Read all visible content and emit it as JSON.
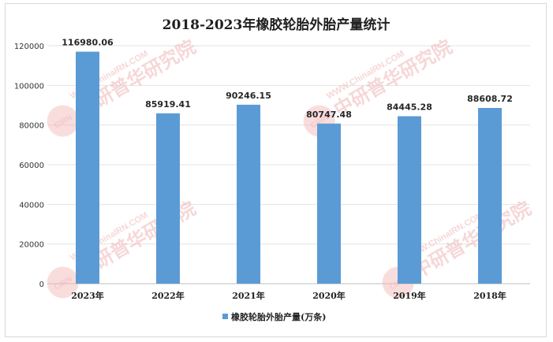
{
  "chart_data": {
    "type": "bar",
    "title": "2018-2023年橡胶轮胎外胎产量统计",
    "categories": [
      "2023年",
      "2022年",
      "2021年",
      "2020年",
      "2019年",
      "2018年"
    ],
    "series": [
      {
        "name": "橡胶轮胎外胎产量(万条)",
        "values": [
          116980.06,
          85919.41,
          90246.15,
          80747.48,
          84445.28,
          88608.72
        ],
        "labels": [
          "116980.06",
          "85919.41",
          "90246.15",
          "80747.48",
          "84445.28",
          "88608.72"
        ],
        "color": "#5b9bd5"
      }
    ],
    "yticks": [
      "0",
      "20000",
      "40000",
      "60000",
      "80000",
      "100000",
      "120000"
    ],
    "ylim": [
      0,
      120000
    ],
    "grid": true,
    "legend_position": "bottom"
  },
  "watermark": {
    "url_text": "WWW.ChinaIRN.COM",
    "cn_text": "中研普华研究院",
    "logo_text": "CIRN"
  }
}
